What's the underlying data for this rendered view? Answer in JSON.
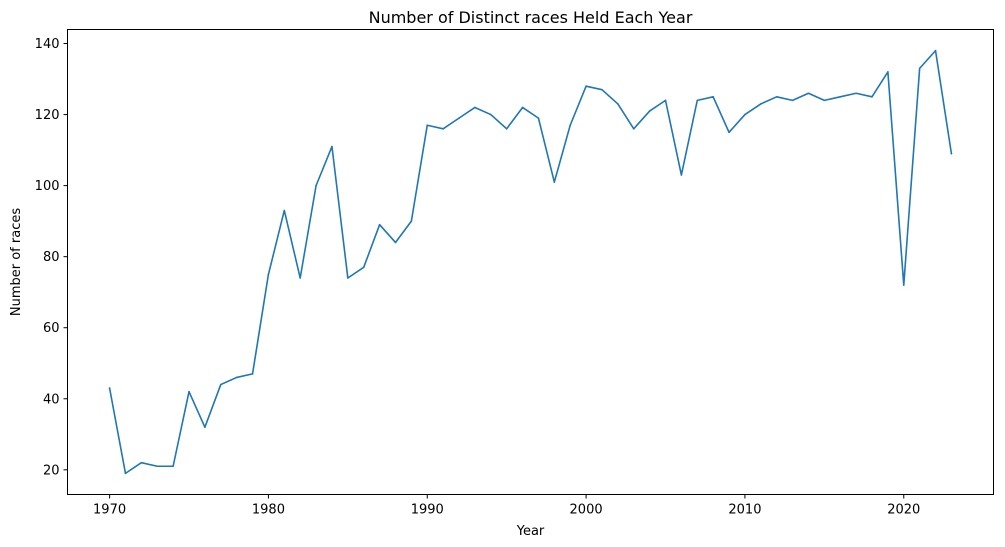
{
  "chart_data": {
    "type": "line",
    "title": "Number of Distinct races Held Each Year",
    "xlabel": "Year",
    "ylabel": "Number of races",
    "xlim": [
      1967.35,
      2025.65
    ],
    "ylim": [
      13.05,
      143.95
    ],
    "xticks": [
      1970,
      1980,
      1990,
      2000,
      2010,
      2020
    ],
    "yticks": [
      20,
      40,
      60,
      80,
      100,
      120,
      140
    ],
    "grid": false,
    "line_color": "#1f77b4",
    "series": [
      {
        "x": [
          1970,
          1971,
          1972,
          1973,
          1974,
          1975,
          1976,
          1977,
          1978,
          1979,
          1980,
          1981,
          1982,
          1983,
          1984,
          1985,
          1986,
          1987,
          1988,
          1989,
          1990,
          1991,
          1992,
          1993,
          1994,
          1995,
          1996,
          1997,
          1998,
          1999,
          2000,
          2001,
          2002,
          2003,
          2004,
          2005,
          2006,
          2007,
          2008,
          2009,
          2010,
          2011,
          2012,
          2013,
          2014,
          2015,
          2016,
          2017,
          2018,
          2019,
          2020,
          2021,
          2022,
          2023
        ],
        "values": [
          43,
          19,
          22,
          21,
          21,
          42,
          32,
          44,
          46,
          47,
          75,
          93,
          74,
          100,
          111,
          74,
          77,
          89,
          84,
          90,
          117,
          116,
          119,
          122,
          120,
          116,
          122,
          119,
          101,
          117,
          128,
          127,
          123,
          116,
          121,
          124,
          103,
          124,
          125,
          115,
          120,
          123,
          125,
          124,
          126,
          124,
          125,
          126,
          125,
          132,
          72,
          133,
          138,
          109
        ]
      }
    ]
  }
}
